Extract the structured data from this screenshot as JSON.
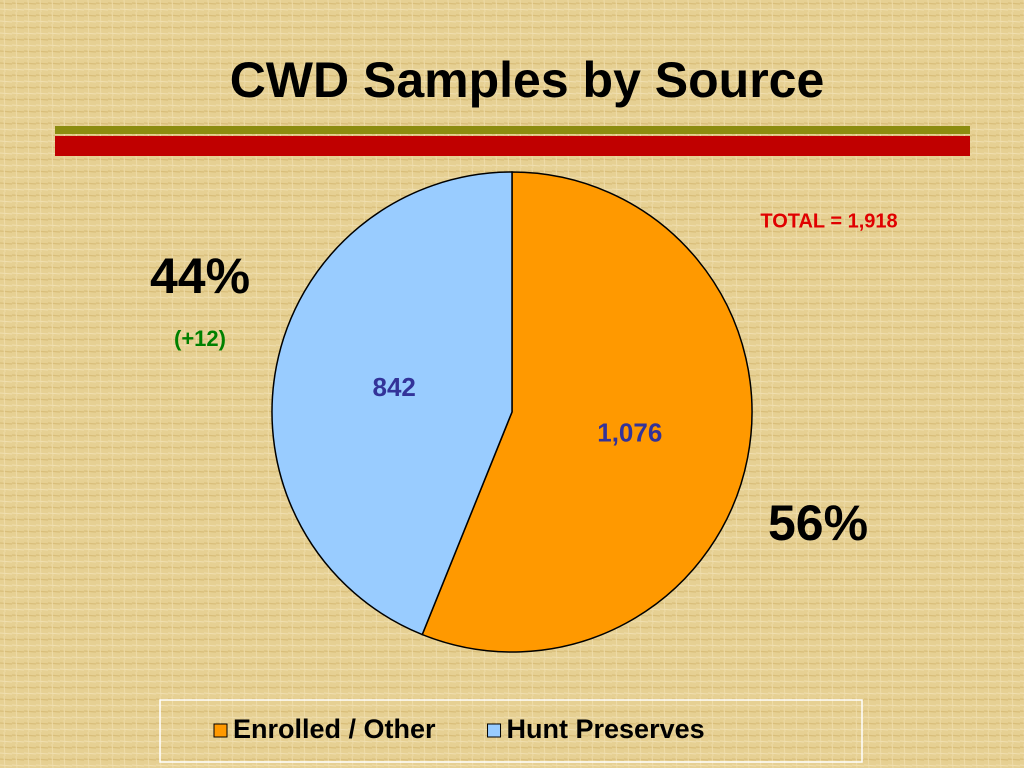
{
  "chart_data": {
    "type": "pie",
    "title": "CWD Samples by Source",
    "categories": [
      "Enrolled / Other",
      "Hunt Preserves"
    ],
    "values": [
      1076,
      842
    ],
    "value_labels": [
      "1,076",
      "842"
    ],
    "colors": [
      "#FF9900",
      "#99CCFF"
    ],
    "annotations": [
      "TOTAL = 1,918",
      "44%",
      "(+12)",
      "56%"
    ],
    "legend": "bottom"
  }
}
